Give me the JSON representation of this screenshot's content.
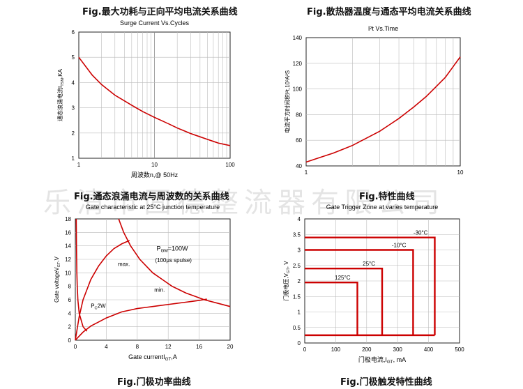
{
  "watermark": "乐清市固德整流器有限公司",
  "figures": {
    "surge_caption": "Fig.最大功耗与正向平均电流关系曲线",
    "i2t_caption": "Fig.散热器温度与通态平均电流关系曲线",
    "surge_bottom_caption": "Fig.通态浪涌电流与周波数的关系曲线",
    "i2t_bottom_caption": "Fig.特性曲线",
    "gate_power_caption": "Fig.门极功率曲线",
    "gate_trigger_caption": "Fig.门极触发特性曲线"
  },
  "chart_data": [
    {
      "id": "surge",
      "type": "line",
      "title": "Surge Current Vs.Cycles",
      "xlabel": "周波数n,@ 50Hz",
      "ylabel": "通态浪涌电流I_TSM,KA",
      "xscale": "log",
      "xlim": [
        1,
        100
      ],
      "ylim": [
        1,
        6
      ],
      "xticks": [
        "1",
        "10",
        "100"
      ],
      "yticks": [
        "1",
        "2",
        "3",
        "4",
        "5",
        "6"
      ],
      "grid": true,
      "series": [
        {
          "x": [
            1,
            1.5,
            2,
            3,
            5,
            7,
            10,
            15,
            20,
            30,
            50,
            70,
            100
          ],
          "y": [
            5.0,
            4.3,
            3.92,
            3.5,
            3.1,
            2.85,
            2.62,
            2.38,
            2.2,
            1.98,
            1.75,
            1.6,
            1.5
          ]
        }
      ],
      "color": "#cc0000"
    },
    {
      "id": "i2t",
      "type": "line",
      "title": "I²t Vs.Time",
      "xlabel": "",
      "ylabel": "电流平方时间积I²t,10³A²S",
      "xscale": "log",
      "xlim": [
        1,
        10
      ],
      "ylim": [
        40,
        140
      ],
      "xticks": [
        "1",
        "10"
      ],
      "yticks": [
        "40",
        "60",
        "80",
        "100",
        "120",
        "140"
      ],
      "grid": true,
      "series": [
        {
          "x": [
            1,
            1.5,
            2,
            3,
            4,
            5,
            6,
            7,
            8,
            10
          ],
          "y": [
            43,
            50,
            56,
            67,
            77,
            86,
            94,
            102,
            109,
            125
          ]
        }
      ],
      "color": "#cc0000"
    },
    {
      "id": "gate_power",
      "type": "line",
      "title": "Gate characteristic at 25°C junction temperature",
      "xlabel": "Gate currentI_GT,A",
      "ylabel": "Gate voltageV_GT,V",
      "xlim": [
        0,
        20
      ],
      "ylim": [
        0,
        18
      ],
      "xticks": [
        "0",
        "4",
        "8",
        "12",
        "16",
        "20"
      ],
      "yticks": [
        "0",
        "2",
        "4",
        "6",
        "8",
        "10",
        "12",
        "14",
        "16",
        "18"
      ],
      "grid": true,
      "annotations": {
        "pgm_label": "P_GM=100W",
        "pgm_sub": "(100μs spulse)",
        "max_label": "max.",
        "min_label": "min.",
        "pc_label": "P_C2W"
      },
      "series": [
        {
          "name": "max.",
          "x": [
            0,
            0.5,
            1,
            2,
            3,
            4,
            5,
            6,
            7
          ],
          "y": [
            0,
            3.5,
            6.0,
            9.0,
            11.0,
            12.5,
            13.6,
            14.3,
            14.8
          ]
        },
        {
          "name": "min.",
          "x": [
            0,
            1,
            2,
            4,
            6,
            8,
            10,
            12,
            14,
            16,
            17
          ],
          "y": [
            0,
            1.2,
            2.1,
            3.3,
            4.2,
            4.7,
            5.0,
            5.3,
            5.6,
            5.9,
            6.1
          ]
        },
        {
          "name": "P_GM=100W",
          "x": [
            5.6,
            6.25,
            7.14,
            8.33,
            10,
            12.5,
            14.3,
            16.67,
            20
          ],
          "y": [
            18,
            16,
            14,
            12,
            10,
            8,
            7,
            6,
            5
          ]
        },
        {
          "name": "P_C2W",
          "x": [
            0.12,
            0.15,
            0.2,
            0.25,
            0.33,
            0.5,
            1,
            1.5
          ],
          "y": [
            18,
            14,
            10,
            8,
            6,
            4,
            2,
            1.33
          ]
        }
      ],
      "color": "#cc0000"
    },
    {
      "id": "gate_trigger",
      "type": "line",
      "title": "Gate Trigger Zone at varies temperature",
      "xlabel": "门极电流,I_GT, mA",
      "ylabel": "门极电压,V_GT, V",
      "xlim": [
        0,
        500
      ],
      "ylim": [
        0,
        4
      ],
      "xticks": [
        "0",
        "100",
        "200",
        "300",
        "400",
        "500"
      ],
      "yticks": [
        "0",
        "0.5",
        "1",
        "1.5",
        "2",
        "2.5",
        "3",
        "3.5",
        "4"
      ],
      "grid": true,
      "zones": [
        {
          "label": "-30°C",
          "igt": 420,
          "vgt": 3.4
        },
        {
          "label": "-10°C",
          "igt": 350,
          "vgt": 3.0
        },
        {
          "label": "25°C",
          "igt": 250,
          "vgt": 2.4
        },
        {
          "label": "125°C",
          "igt": 170,
          "vgt": 1.95
        }
      ],
      "baseline_vgt": 0.25,
      "color": "#cc0000"
    }
  ]
}
